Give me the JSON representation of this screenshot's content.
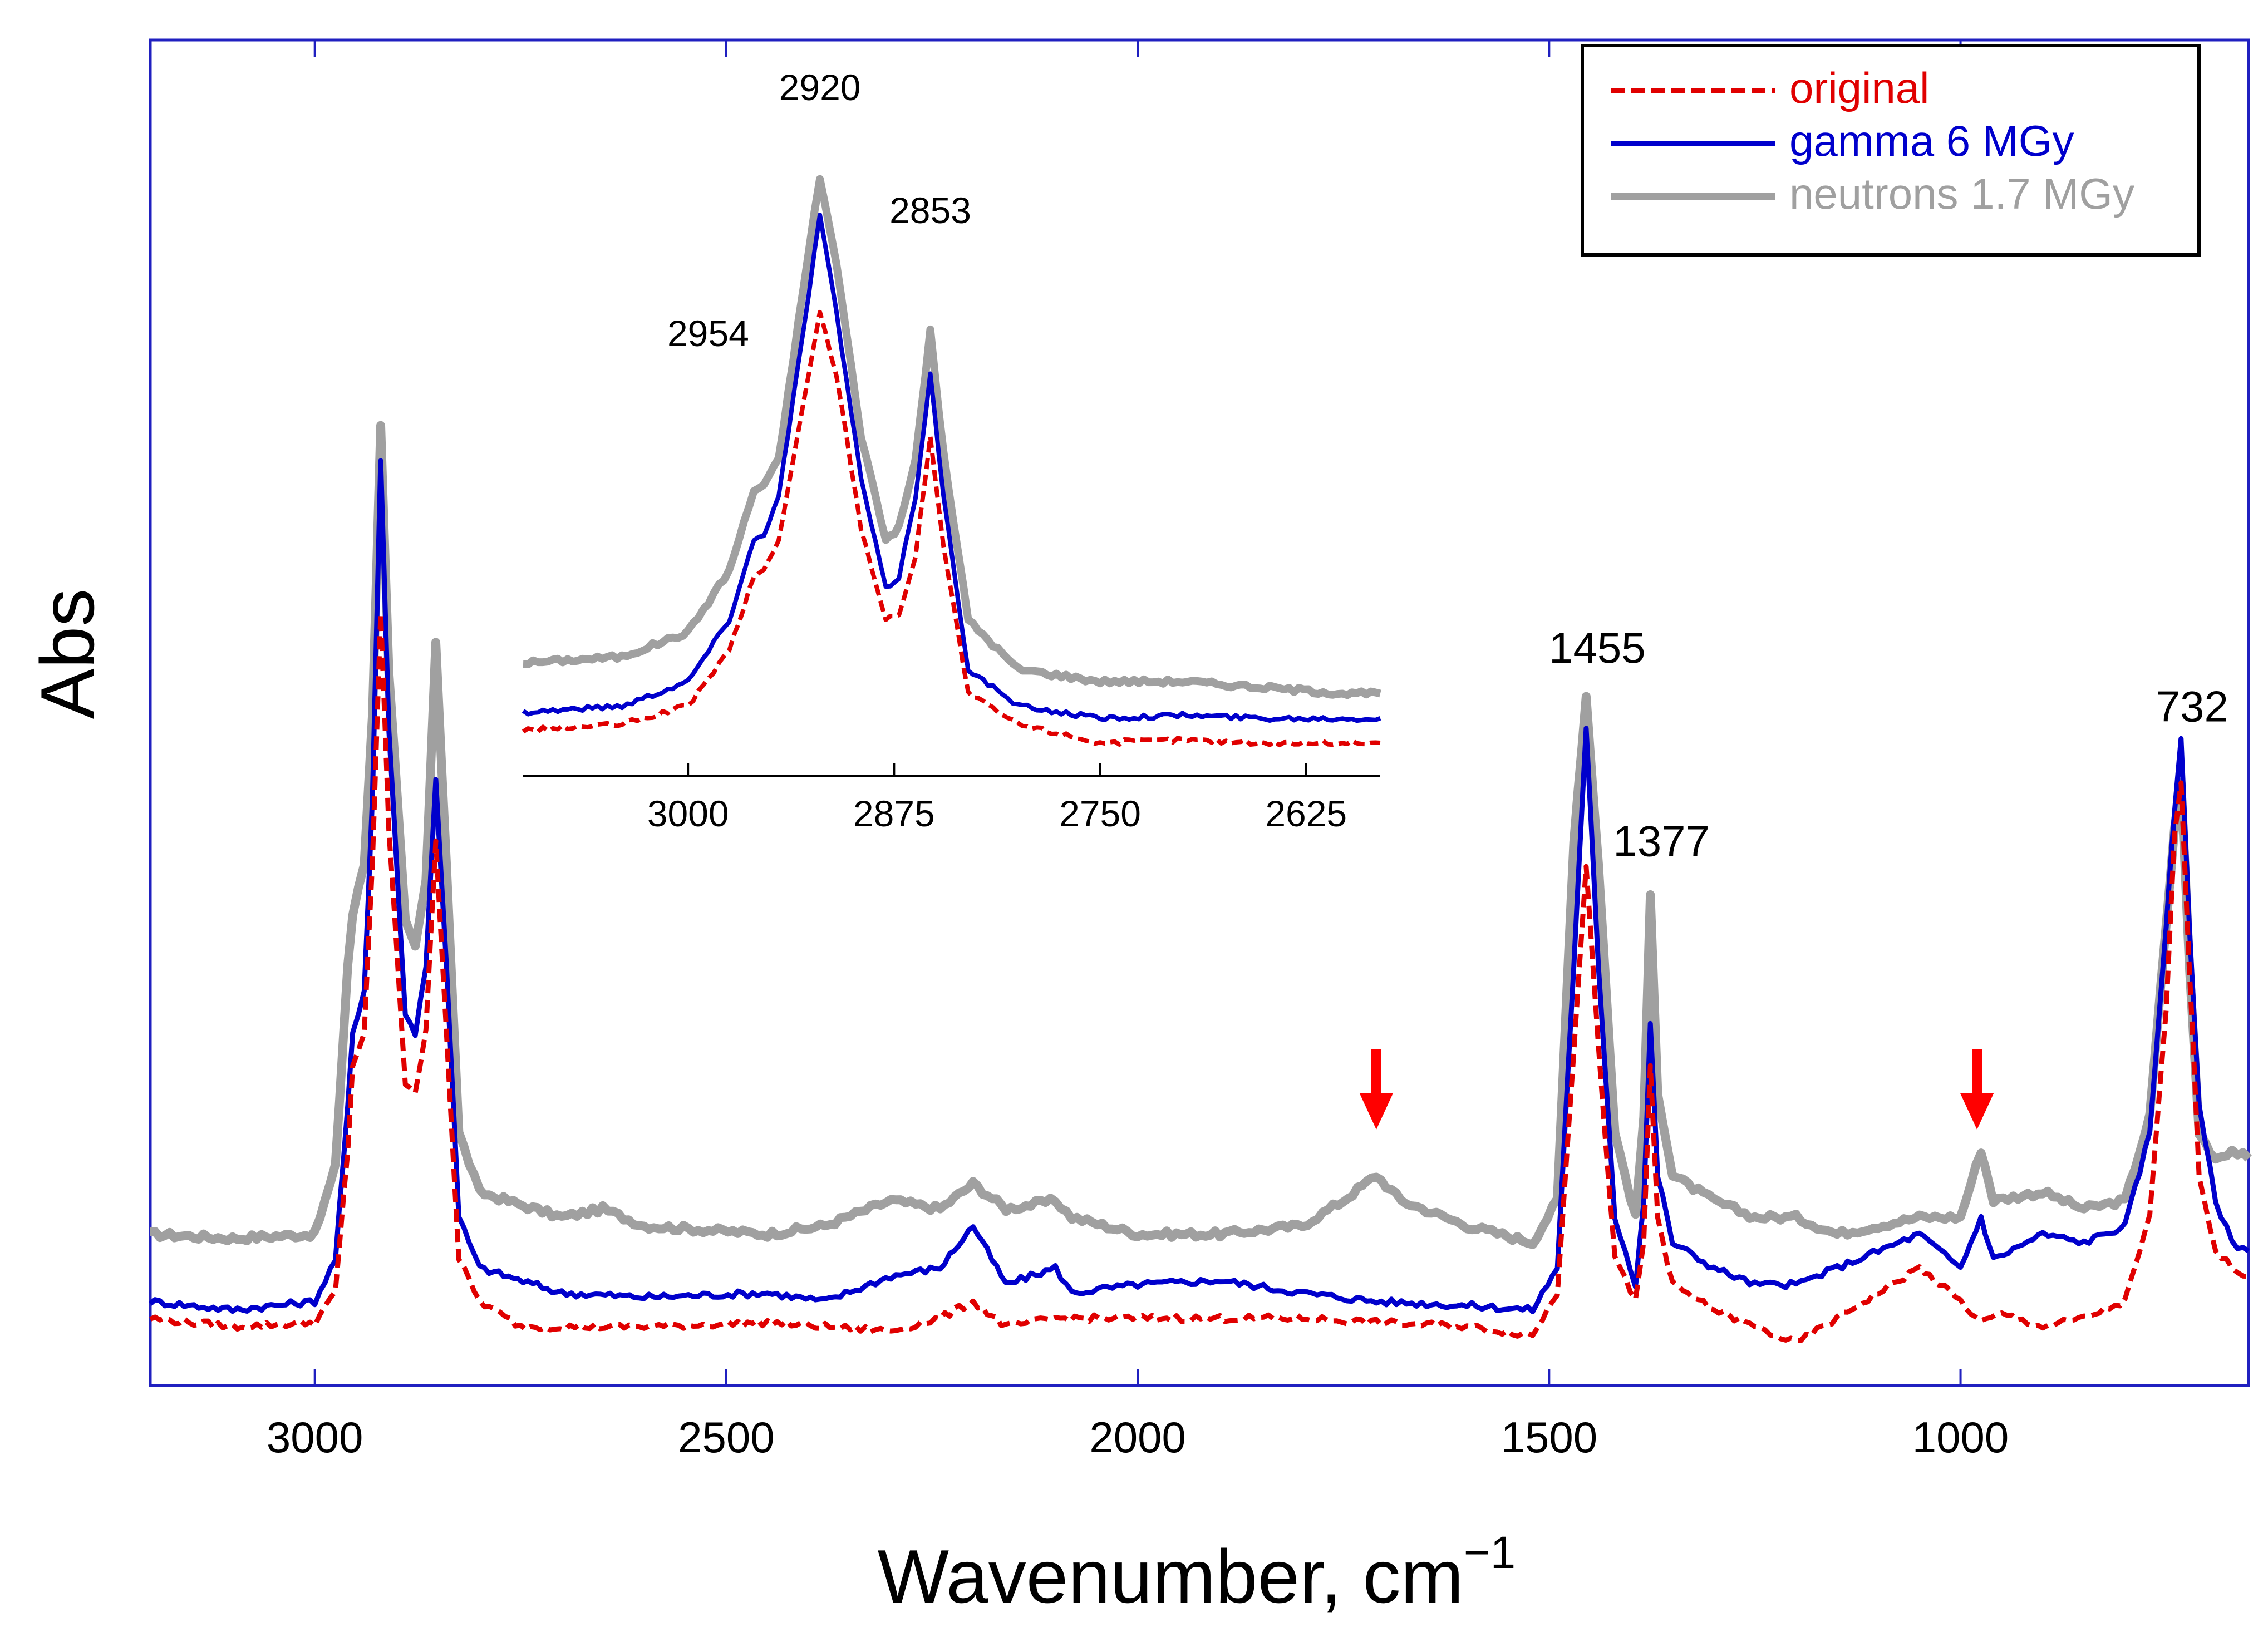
{
  "chart_data": {
    "type": "line",
    "xlabel": "Wavenumber, cm",
    "xlabel_superscript": "−1",
    "ylabel": "Abs",
    "xlim": [
      3200,
      650
    ],
    "ylim": [
      0,
      1.6
    ],
    "x_reversed": true,
    "x_ticks": [
      "3000",
      "2500",
      "2000",
      "1500",
      "1000"
    ],
    "x_tick_values": [
      3000,
      2500,
      2000,
      1500,
      1000
    ],
    "colors": {
      "original": "#e00000",
      "gamma": "#0000cc",
      "neutrons": "#a0a0a0",
      "frame": "#2020c0",
      "arrow": "#ff0000"
    },
    "legend": [
      {
        "label": "original",
        "color": "#e00000",
        "style": "dashed"
      },
      {
        "label": "gamma 6 MGy",
        "color": "#0000cc",
        "style": "solid"
      },
      {
        "label": "neutrons 1.7 MGy",
        "color": "#a0a0a0",
        "style": "solid"
      }
    ],
    "peak_labels": [
      {
        "text": "1455",
        "x": 1455,
        "y": 0.82
      },
      {
        "text": "1377",
        "x": 1377,
        "y": 0.59
      },
      {
        "text": "732",
        "x": 732,
        "y": 0.75
      }
    ],
    "arrows": [
      1710,
      980
    ],
    "series": [
      {
        "name": "original",
        "baseline": 0.06,
        "points": [
          [
            3200,
            0.08
          ],
          [
            3100,
            0.07
          ],
          [
            3000,
            0.075
          ],
          [
            2975,
            0.11
          ],
          [
            2960,
            0.28
          ],
          [
            2954,
            0.38
          ],
          [
            2940,
            0.42
          ],
          [
            2930,
            0.62
          ],
          [
            2920,
            0.92
          ],
          [
            2910,
            0.66
          ],
          [
            2890,
            0.36
          ],
          [
            2878,
            0.35
          ],
          [
            2865,
            0.42
          ],
          [
            2853,
            0.65
          ],
          [
            2840,
            0.42
          ],
          [
            2825,
            0.15
          ],
          [
            2800,
            0.1
          ],
          [
            2750,
            0.07
          ],
          [
            2600,
            0.07
          ],
          [
            2450,
            0.075
          ],
          [
            2380,
            0.07
          ],
          [
            2300,
            0.065
          ],
          [
            2240,
            0.08
          ],
          [
            2200,
            0.1
          ],
          [
            2160,
            0.07
          ],
          [
            2100,
            0.08
          ],
          [
            2000,
            0.08
          ],
          [
            1900,
            0.08
          ],
          [
            1800,
            0.08
          ],
          [
            1710,
            0.075
          ],
          [
            1600,
            0.07
          ],
          [
            1520,
            0.06
          ],
          [
            1490,
            0.11
          ],
          [
            1470,
            0.4
          ],
          [
            1455,
            0.62
          ],
          [
            1440,
            0.4
          ],
          [
            1420,
            0.15
          ],
          [
            1395,
            0.1
          ],
          [
            1385,
            0.17
          ],
          [
            1377,
            0.38
          ],
          [
            1368,
            0.2
          ],
          [
            1350,
            0.12
          ],
          [
            1300,
            0.09
          ],
          [
            1250,
            0.07
          ],
          [
            1200,
            0.05
          ],
          [
            1150,
            0.08
          ],
          [
            1100,
            0.11
          ],
          [
            1050,
            0.14
          ],
          [
            1000,
            0.1
          ],
          [
            975,
            0.075
          ],
          [
            950,
            0.085
          ],
          [
            900,
            0.07
          ],
          [
            850,
            0.08
          ],
          [
            800,
            0.1
          ],
          [
            770,
            0.2
          ],
          [
            750,
            0.45
          ],
          [
            740,
            0.65
          ],
          [
            732,
            0.72
          ],
          [
            722,
            0.5
          ],
          [
            710,
            0.25
          ],
          [
            690,
            0.16
          ],
          [
            670,
            0.14
          ],
          [
            650,
            0.13
          ]
        ]
      },
      {
        "name": "gamma",
        "baseline": 0.1,
        "points": [
          [
            3200,
            0.1
          ],
          [
            3100,
            0.09
          ],
          [
            3000,
            0.1
          ],
          [
            2975,
            0.15
          ],
          [
            2960,
            0.33
          ],
          [
            2954,
            0.42
          ],
          [
            2940,
            0.47
          ],
          [
            2930,
            0.7
          ],
          [
            2920,
            1.1
          ],
          [
            2910,
            0.78
          ],
          [
            2890,
            0.44
          ],
          [
            2878,
            0.42
          ],
          [
            2865,
            0.5
          ],
          [
            2853,
            0.72
          ],
          [
            2840,
            0.5
          ],
          [
            2825,
            0.2
          ],
          [
            2800,
            0.14
          ],
          [
            2700,
            0.11
          ],
          [
            2600,
            0.105
          ],
          [
            2450,
            0.11
          ],
          [
            2380,
            0.1
          ],
          [
            2300,
            0.13
          ],
          [
            2240,
            0.14
          ],
          [
            2200,
            0.19
          ],
          [
            2160,
            0.12
          ],
          [
            2100,
            0.14
          ],
          [
            2080,
            0.11
          ],
          [
            2000,
            0.12
          ],
          [
            1900,
            0.125
          ],
          [
            1800,
            0.11
          ],
          [
            1710,
            0.1
          ],
          [
            1600,
            0.095
          ],
          [
            1520,
            0.09
          ],
          [
            1490,
            0.14
          ],
          [
            1470,
            0.5
          ],
          [
            1455,
            0.78
          ],
          [
            1440,
            0.5
          ],
          [
            1420,
            0.2
          ],
          [
            1395,
            0.12
          ],
          [
            1385,
            0.22
          ],
          [
            1377,
            0.43
          ],
          [
            1368,
            0.25
          ],
          [
            1350,
            0.17
          ],
          [
            1300,
            0.14
          ],
          [
            1250,
            0.12
          ],
          [
            1200,
            0.12
          ],
          [
            1150,
            0.14
          ],
          [
            1100,
            0.16
          ],
          [
            1050,
            0.18
          ],
          [
            1000,
            0.14
          ],
          [
            975,
            0.2
          ],
          [
            960,
            0.15
          ],
          [
            900,
            0.18
          ],
          [
            850,
            0.17
          ],
          [
            800,
            0.19
          ],
          [
            770,
            0.3
          ],
          [
            750,
            0.55
          ],
          [
            740,
            0.68
          ],
          [
            732,
            0.77
          ],
          [
            722,
            0.55
          ],
          [
            710,
            0.33
          ],
          [
            690,
            0.22
          ],
          [
            670,
            0.17
          ],
          [
            650,
            0.16
          ]
        ]
      },
      {
        "name": "neutrons",
        "baseline": 0.18,
        "points": [
          [
            3200,
            0.18
          ],
          [
            3100,
            0.175
          ],
          [
            3000,
            0.18
          ],
          [
            2975,
            0.26
          ],
          [
            2960,
            0.5
          ],
          [
            2954,
            0.56
          ],
          [
            2940,
            0.62
          ],
          [
            2930,
            0.8
          ],
          [
            2920,
            1.14
          ],
          [
            2910,
            0.85
          ],
          [
            2890,
            0.55
          ],
          [
            2878,
            0.52
          ],
          [
            2865,
            0.6
          ],
          [
            2853,
            0.88
          ],
          [
            2840,
            0.62
          ],
          [
            2825,
            0.3
          ],
          [
            2800,
            0.23
          ],
          [
            2700,
            0.2
          ],
          [
            2650,
            0.21
          ],
          [
            2600,
            0.19
          ],
          [
            2450,
            0.18
          ],
          [
            2380,
            0.19
          ],
          [
            2300,
            0.22
          ],
          [
            2240,
            0.21
          ],
          [
            2200,
            0.24
          ],
          [
            2160,
            0.21
          ],
          [
            2100,
            0.22
          ],
          [
            2080,
            0.2
          ],
          [
            2000,
            0.18
          ],
          [
            1900,
            0.18
          ],
          [
            1800,
            0.19
          ],
          [
            1750,
            0.22
          ],
          [
            1710,
            0.25
          ],
          [
            1680,
            0.22
          ],
          [
            1600,
            0.19
          ],
          [
            1520,
            0.17
          ],
          [
            1490,
            0.22
          ],
          [
            1470,
            0.65
          ],
          [
            1455,
            0.82
          ],
          [
            1440,
            0.62
          ],
          [
            1420,
            0.3
          ],
          [
            1395,
            0.2
          ],
          [
            1385,
            0.32
          ],
          [
            1377,
            0.58
          ],
          [
            1368,
            0.35
          ],
          [
            1350,
            0.25
          ],
          [
            1300,
            0.22
          ],
          [
            1250,
            0.2
          ],
          [
            1200,
            0.2
          ],
          [
            1150,
            0.18
          ],
          [
            1100,
            0.19
          ],
          [
            1050,
            0.2
          ],
          [
            1000,
            0.2
          ],
          [
            975,
            0.28
          ],
          [
            960,
            0.22
          ],
          [
            900,
            0.23
          ],
          [
            850,
            0.21
          ],
          [
            800,
            0.22
          ],
          [
            770,
            0.32
          ],
          [
            750,
            0.55
          ],
          [
            740,
            0.66
          ],
          [
            732,
            0.72
          ],
          [
            722,
            0.5
          ],
          [
            710,
            0.3
          ],
          [
            690,
            0.27
          ],
          [
            670,
            0.28
          ],
          [
            650,
            0.27
          ]
        ]
      }
    ],
    "inset": {
      "xlim": [
        3100,
        2580
      ],
      "ylim": [
        0,
        1.0
      ],
      "x_ticks": [
        "3000",
        "2875",
        "2750",
        "2625"
      ],
      "x_tick_values": [
        3000,
        2875,
        2750,
        2625
      ],
      "peak_labels": [
        {
          "text": "2954",
          "x": 2954,
          "y": 0.6
        },
        {
          "text": "2920",
          "x": 2920,
          "y": 1.0
        },
        {
          "text": "2853",
          "x": 2853,
          "y": 0.8
        }
      ],
      "series": [
        {
          "name": "original",
          "points": [
            [
              3100,
              0.02
            ],
            [
              3040,
              0.03
            ],
            [
              3000,
              0.06
            ],
            [
              2975,
              0.15
            ],
            [
              2960,
              0.27
            ],
            [
              2954,
              0.28
            ],
            [
              2945,
              0.33
            ],
            [
              2930,
              0.55
            ],
            [
              2920,
              0.7
            ],
            [
              2910,
              0.6
            ],
            [
              2895,
              0.35
            ],
            [
              2880,
              0.2
            ],
            [
              2872,
              0.21
            ],
            [
              2862,
              0.3
            ],
            [
              2853,
              0.5
            ],
            [
              2845,
              0.32
            ],
            [
              2830,
              0.08
            ],
            [
              2800,
              0.03
            ],
            [
              2750,
              0.0
            ],
            [
              2700,
              0.005
            ],
            [
              2650,
              0.0
            ],
            [
              2600,
              0.0
            ],
            [
              2580,
              0.0
            ]
          ]
        },
        {
          "name": "gamma",
          "points": [
            [
              3100,
              0.05
            ],
            [
              3040,
              0.06
            ],
            [
              3000,
              0.1
            ],
            [
              2975,
              0.2
            ],
            [
              2960,
              0.33
            ],
            [
              2954,
              0.34
            ],
            [
              2945,
              0.4
            ],
            [
              2930,
              0.67
            ],
            [
              2920,
              0.86
            ],
            [
              2910,
              0.7
            ],
            [
              2895,
              0.43
            ],
            [
              2880,
              0.25
            ],
            [
              2872,
              0.27
            ],
            [
              2862,
              0.4
            ],
            [
              2853,
              0.6
            ],
            [
              2845,
              0.4
            ],
            [
              2830,
              0.12
            ],
            [
              2800,
              0.06
            ],
            [
              2750,
              0.04
            ],
            [
              2700,
              0.045
            ],
            [
              2650,
              0.04
            ],
            [
              2600,
              0.04
            ],
            [
              2580,
              0.04
            ]
          ]
        },
        {
          "name": "neutrons",
          "points": [
            [
              3100,
              0.13
            ],
            [
              3040,
              0.14
            ],
            [
              3000,
              0.18
            ],
            [
              2975,
              0.28
            ],
            [
              2960,
              0.41
            ],
            [
              2954,
              0.42
            ],
            [
              2945,
              0.46
            ],
            [
              2930,
              0.74
            ],
            [
              2920,
              0.92
            ],
            [
              2910,
              0.78
            ],
            [
              2895,
              0.5
            ],
            [
              2880,
              0.33
            ],
            [
              2872,
              0.35
            ],
            [
              2862,
              0.46
            ],
            [
              2853,
              0.67
            ],
            [
              2845,
              0.47
            ],
            [
              2830,
              0.2
            ],
            [
              2800,
              0.12
            ],
            [
              2750,
              0.1
            ],
            [
              2700,
              0.1
            ],
            [
              2650,
              0.09
            ],
            [
              2600,
              0.08
            ],
            [
              2580,
              0.08
            ]
          ]
        }
      ]
    }
  }
}
